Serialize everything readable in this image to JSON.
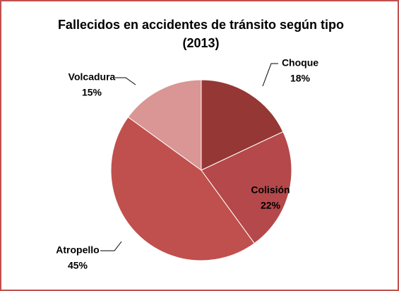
{
  "chart_data": {
    "type": "pie",
    "title": "Fallecidos en accidentes de tránsito según tipo (2013)",
    "categories": [
      "Choque",
      "Colisión",
      "Atropello",
      "Volcadura"
    ],
    "values": [
      18,
      22,
      45,
      15
    ],
    "value_labels": [
      "18%",
      "22%",
      "45%",
      "15%"
    ],
    "colors": [
      "#953735",
      "#b5484a",
      "#c0504d",
      "#d99694"
    ]
  }
}
